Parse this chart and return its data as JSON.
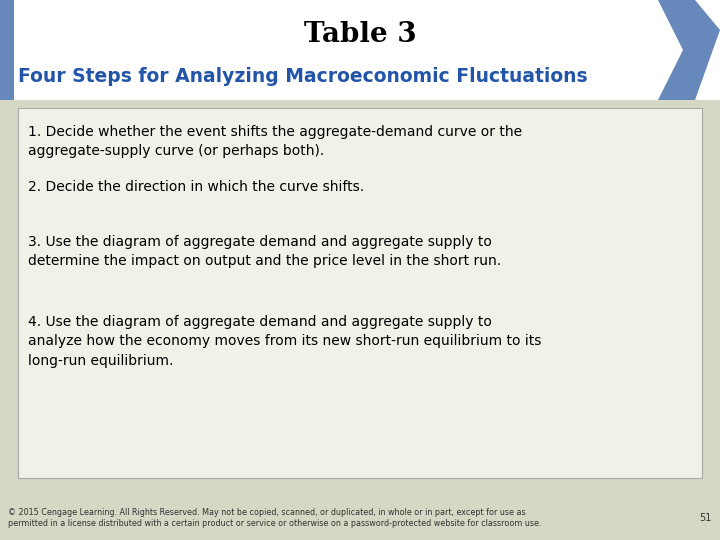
{
  "title": "Table 3",
  "subtitle": "Four Steps for Analyzing Macroeconomic Fluctuations",
  "title_color": "#000000",
  "subtitle_color": "#2255aa",
  "bg_color": "#d4d8c4",
  "header_bg": "#ffffff",
  "box_bg": "#f0f2e8",
  "box_border": "#aaaaaa",
  "steps": [
    "1. Decide whether the event shifts the aggregate-demand curve or the\naggregate-supply curve (or perhaps both).",
    "2. Decide the direction in which the curve shifts.",
    "3. Use the diagram of aggregate demand and aggregate supply to\ndetermine the impact on output and the price level in the short run.",
    "4. Use the diagram of aggregate demand and aggregate supply to\nanalyze how the economy moves from its new short-run equilibrium to its\nlong-run equilibrium."
  ],
  "footer": "© 2015 Cengage Learning. All Rights Reserved. May not be copied, scanned, or duplicated, in whole or in part, except for use as\npermitted in a license distributed with a certain product or service or otherwise on a password-protected website for classroom use.",
  "page_number": "51",
  "chevron_color": "#6688bb",
  "left_bar_color": "#6688bb"
}
